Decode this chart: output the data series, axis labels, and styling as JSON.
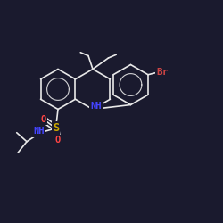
{
  "bg_color": "#1a1a2e",
  "bond_color": "#e8e8e8",
  "atom_colors": {
    "Br": "#cc4444",
    "N": "#4444ff",
    "S": "#ccaa00",
    "O": "#ff4444",
    "H": "#e8e8e8"
  },
  "font_size": 7.5,
  "lw": 1.2
}
